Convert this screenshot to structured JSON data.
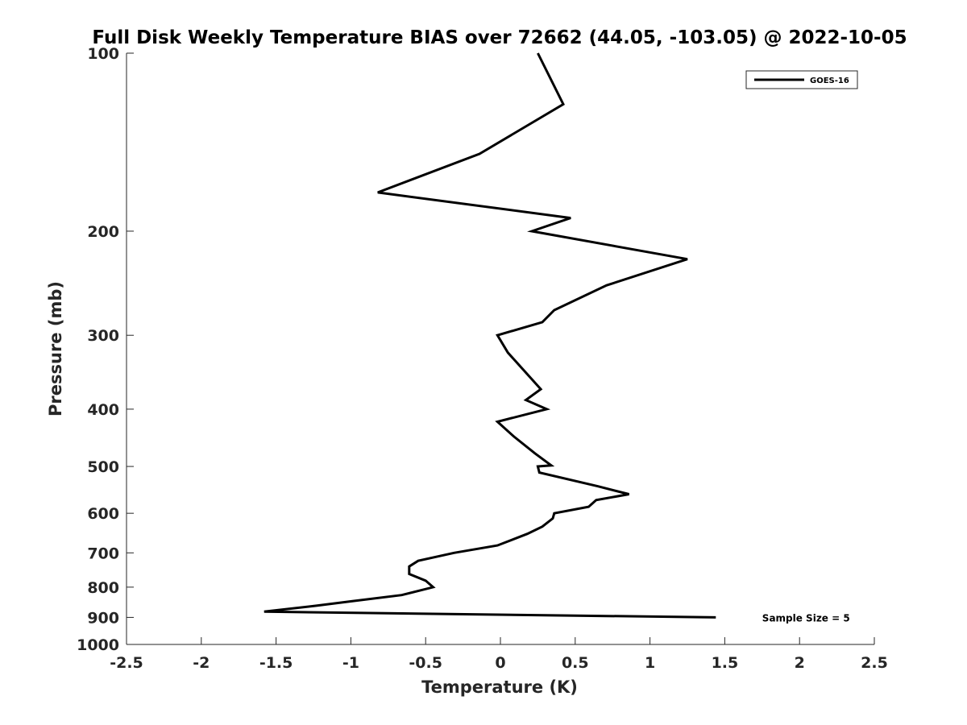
{
  "chart_data": {
    "type": "line",
    "title": "Full Disk Weekly Temperature BIAS over 72662 (44.05, -103.05) @ 2022-10-05",
    "xlabel": "Temperature (K)",
    "ylabel": "Pressure (mb)",
    "xlim": [
      -2.5,
      2.5
    ],
    "ylim": [
      100,
      1000
    ],
    "y_scale": "log",
    "y_reversed": true,
    "grid": false,
    "x_ticks": [
      -2.5,
      -2,
      -1.5,
      -1,
      -0.5,
      0,
      0.5,
      1,
      1.5,
      2,
      2.5
    ],
    "x_tick_labels": [
      "-2.5",
      "-2",
      "-1.5",
      "-1",
      "-0.5",
      "0",
      "0.5",
      "1",
      "1.5",
      "2",
      "2.5"
    ],
    "y_ticks": [
      100,
      200,
      300,
      400,
      500,
      600,
      700,
      800,
      900,
      1000
    ],
    "y_tick_labels": [
      "100",
      "200",
      "300",
      "400",
      "500",
      "600",
      "700",
      "800",
      "900",
      "1000"
    ],
    "legend": {
      "placement": "top-right",
      "entries": [
        "GOES-16"
      ]
    },
    "series": [
      {
        "name": "GOES-16",
        "color": "#000000",
        "points": [
          [
            0.25,
            100
          ],
          [
            0.42,
            122
          ],
          [
            -0.14,
            148
          ],
          [
            -0.82,
            172
          ],
          [
            0.47,
            190
          ],
          [
            0.21,
            200
          ],
          [
            1.25,
            223
          ],
          [
            0.71,
            247
          ],
          [
            0.36,
            272
          ],
          [
            0.28,
            285
          ],
          [
            -0.02,
            300
          ],
          [
            0.05,
            321
          ],
          [
            0.27,
            370
          ],
          [
            0.17,
            386
          ],
          [
            0.31,
            400
          ],
          [
            -0.02,
            420
          ],
          [
            0.09,
            445
          ],
          [
            0.23,
            475
          ],
          [
            0.34,
            498
          ],
          [
            0.25,
            500
          ],
          [
            0.26,
            512
          ],
          [
            0.65,
            540
          ],
          [
            0.86,
            557
          ],
          [
            0.64,
            570
          ],
          [
            0.59,
            585
          ],
          [
            0.36,
            600
          ],
          [
            0.35,
            612
          ],
          [
            0.28,
            632
          ],
          [
            0.18,
            650
          ],
          [
            -0.02,
            680
          ],
          [
            -0.31,
            700
          ],
          [
            -0.55,
            722
          ],
          [
            -0.61,
            738
          ],
          [
            -0.61,
            760
          ],
          [
            -0.5,
            780
          ],
          [
            -0.45,
            800
          ],
          [
            -0.66,
            825
          ],
          [
            -0.99,
            845
          ],
          [
            -1.23,
            860
          ],
          [
            -1.58,
            880
          ],
          [
            1.44,
            900
          ]
        ]
      }
    ],
    "annotations": [
      {
        "text": "Sample Size = 5",
        "x": 1.75,
        "y": 900
      }
    ]
  }
}
